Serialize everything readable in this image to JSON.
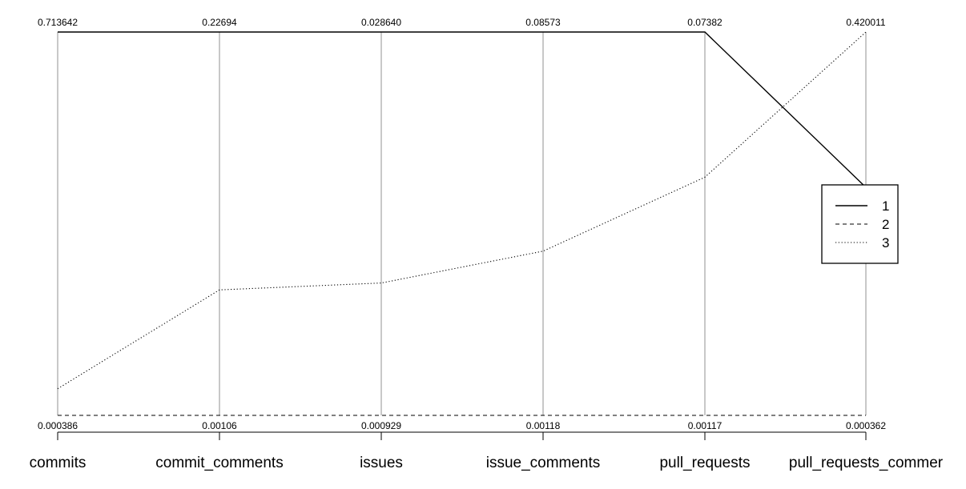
{
  "chart_data": {
    "type": "line",
    "subtype": "parallel_coordinates",
    "categories": [
      "commits",
      "commit_comments",
      "issues",
      "issue_comments",
      "pull_requests",
      "pull_requests_commer"
    ],
    "axis_max_labels": [
      "0.713642",
      "0.22694",
      "0.028640",
      "0.08573",
      "0.07382",
      "0.420011"
    ],
    "axis_min_labels": [
      "0.000386",
      "0.00106",
      "0.000929",
      "0.00118",
      "0.00117",
      "0.000362"
    ],
    "axis_max": [
      0.713642,
      0.22694,
      0.02864,
      0.08573,
      0.07382,
      0.420011
    ],
    "axis_min": [
      0.000386,
      0.00106,
      0.000929,
      0.00118,
      0.00117,
      0.000362
    ],
    "series": [
      {
        "name": "1",
        "line_style": "solid",
        "values": [
          0.713642,
          0.22694,
          0.02864,
          0.08573,
          0.07382,
          0.25
        ]
      },
      {
        "name": "2",
        "line_style": "dashed",
        "values": [
          0.000386,
          0.00106,
          0.000929,
          0.00118,
          0.00117,
          0.000362
        ]
      },
      {
        "name": "3",
        "line_style": "dotted",
        "values": [
          0.05,
          0.075,
          0.0105,
          0.0374,
          0.0463,
          0.420011
        ]
      }
    ],
    "legend_position": "right",
    "grid": false
  },
  "colors": {
    "axis": "#c8c8c8",
    "line": "#000000",
    "background": "#ffffff"
  }
}
